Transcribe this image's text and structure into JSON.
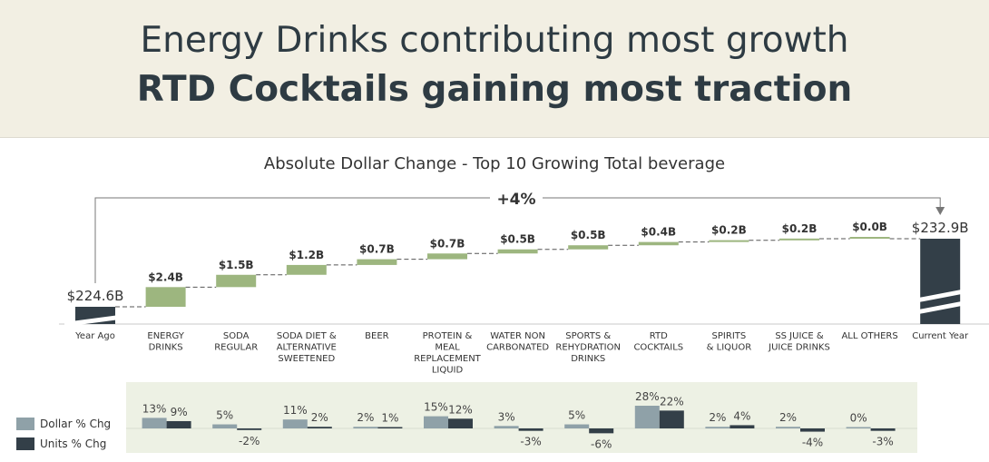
{
  "header": {
    "title_line1": "Energy Drinks contributing most growth",
    "title_line2": "RTD Cocktails gaining most traction"
  },
  "colors": {
    "green": "#9db67f",
    "dark": "#333f48",
    "gray": "#8fa1a8",
    "panel": "#edf1e4",
    "header_bg": "#f2efe3"
  },
  "chart_data": [
    {
      "type": "waterfall",
      "title": "Absolute Dollar Change - Top 10 Growing Total beverage",
      "growth_label": "+4%",
      "start": {
        "label": "Year Ago",
        "value": 224.6,
        "value_label": "$224.6B"
      },
      "end": {
        "label": "Current Year",
        "value": 232.9,
        "value_label": "$232.9B"
      },
      "categories": [
        {
          "label": [
            "ENERGY",
            "DRINKS"
          ],
          "value": 2.4,
          "value_label": "$2.4B"
        },
        {
          "label": [
            "SODA",
            "REGULAR"
          ],
          "value": 1.5,
          "value_label": "$1.5B"
        },
        {
          "label": [
            "SODA DIET &",
            "ALTERNATIVE",
            "SWEETENED"
          ],
          "value": 1.2,
          "value_label": "$1.2B"
        },
        {
          "label": [
            "BEER"
          ],
          "value": 0.7,
          "value_label": "$0.7B"
        },
        {
          "label": [
            "PROTEIN &",
            "MEAL",
            "REPLACEMENT",
            "LIQUID"
          ],
          "value": 0.7,
          "value_label": "$0.7B"
        },
        {
          "label": [
            "WATER NON",
            "CARBONATED"
          ],
          "value": 0.5,
          "value_label": "$0.5B"
        },
        {
          "label": [
            "SPORTS &",
            "REHYDRATION",
            "DRINKS"
          ],
          "value": 0.5,
          "value_label": "$0.5B"
        },
        {
          "label": [
            "RTD",
            "COCKTAILS"
          ],
          "value": 0.4,
          "value_label": "$0.4B"
        },
        {
          "label": [
            "SPIRITS",
            "& LIQUOR"
          ],
          "value": 0.2,
          "value_label": "$0.2B"
        },
        {
          "label": [
            "SS JUICE &",
            "JUICE DRINKS"
          ],
          "value": 0.2,
          "value_label": "$0.2B"
        },
        {
          "label": [
            "ALL OTHERS"
          ],
          "value": 0.0,
          "value_label": "$0.0B"
        }
      ]
    },
    {
      "type": "bar",
      "series": [
        {
          "name": "Dollar % Chg",
          "values": [
            13,
            5,
            11,
            2,
            15,
            3,
            5,
            28,
            2,
            2,
            0
          ],
          "labels": [
            "13%",
            "5%",
            "11%",
            "2%",
            "15%",
            "3%",
            "5%",
            "28%",
            "2%",
            "2%",
            "0%"
          ]
        },
        {
          "name": "Units % Chg",
          "values": [
            9,
            -2,
            2,
            1,
            12,
            -3,
            -6,
            22,
            4,
            -4,
            -3
          ],
          "labels": [
            "9%",
            "-2%",
            "2%",
            "1%",
            "12%",
            "-3%",
            "-6%",
            "22%",
            "4%",
            "-4%",
            "-3%"
          ]
        }
      ]
    }
  ]
}
